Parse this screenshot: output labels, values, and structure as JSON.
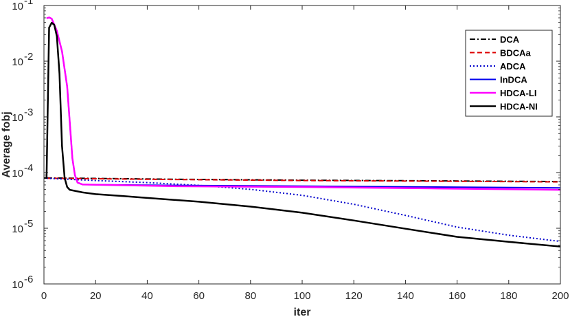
{
  "chart_data": {
    "type": "line",
    "xlabel": "iter",
    "ylabel": "Average fobj",
    "xlim": [
      0,
      200
    ],
    "ylim": [
      1e-06,
      0.1
    ],
    "yscale": "log",
    "grid": false,
    "legend_position": "top-right",
    "x_ticks": [
      0,
      20,
      40,
      60,
      80,
      100,
      120,
      140,
      160,
      180,
      200
    ],
    "y_ticks": [
      {
        "value": 1e-06,
        "base": "10",
        "exp": "-6"
      },
      {
        "value": 1e-05,
        "base": "10",
        "exp": "-5"
      },
      {
        "value": 0.0001,
        "base": "10",
        "exp": "-4"
      },
      {
        "value": 0.001,
        "base": "10",
        "exp": "-3"
      },
      {
        "value": 0.01,
        "base": "10",
        "exp": "-2"
      },
      {
        "value": 0.1,
        "base": "10",
        "exp": "-1"
      }
    ],
    "series": [
      {
        "name": "DCA",
        "color": "#000000",
        "dash": "dashdot",
        "width": 2,
        "points": [
          [
            1,
            8e-05
          ],
          [
            50,
            7.6e-05
          ],
          [
            100,
            7.3e-05
          ],
          [
            150,
            7.1e-05
          ],
          [
            200,
            6.9e-05
          ]
        ]
      },
      {
        "name": "BDCAa",
        "color": "#dd0000",
        "dash": "dashed",
        "width": 2,
        "points": [
          [
            1,
            7.9e-05
          ],
          [
            50,
            7.5e-05
          ],
          [
            100,
            7.2e-05
          ],
          [
            150,
            7e-05
          ],
          [
            200,
            6.8e-05
          ]
        ]
      },
      {
        "name": "ADCA",
        "color": "#0000cc",
        "dash": "dotted",
        "width": 2,
        "points": [
          [
            1,
            7.9e-05
          ],
          [
            20,
            7.2e-05
          ],
          [
            40,
            6.6e-05
          ],
          [
            60,
            5.9e-05
          ],
          [
            80,
            5e-05
          ],
          [
            100,
            3.9e-05
          ],
          [
            120,
            2.7e-05
          ],
          [
            140,
            1.7e-05
          ],
          [
            160,
            1.05e-05
          ],
          [
            180,
            7.5e-06
          ],
          [
            200,
            5.8e-06
          ]
        ]
      },
      {
        "name": "InDCA",
        "color": "#0000ee",
        "dash": "solid",
        "width": 2,
        "points": [
          [
            1,
            0.059
          ],
          [
            2,
            0.061
          ],
          [
            3,
            0.058
          ],
          [
            5,
            0.035
          ],
          [
            7,
            0.015
          ],
          [
            9,
            0.0035
          ],
          [
            10,
            0.0008
          ],
          [
            11,
            0.00018
          ],
          [
            12,
            9e-05
          ],
          [
            13,
            6.6e-05
          ],
          [
            15,
            6.1e-05
          ],
          [
            50,
            5.9e-05
          ],
          [
            100,
            5.7e-05
          ],
          [
            150,
            5.5e-05
          ],
          [
            200,
            5.3e-05
          ]
        ]
      },
      {
        "name": "HDCA-LI",
        "color": "#ff00ff",
        "dash": "solid",
        "width": 2.5,
        "points": [
          [
            1,
            0.059
          ],
          [
            2,
            0.061
          ],
          [
            3,
            0.058
          ],
          [
            5,
            0.035
          ],
          [
            7,
            0.015
          ],
          [
            9,
            0.0035
          ],
          [
            10,
            0.0008
          ],
          [
            11,
            0.00018
          ],
          [
            12,
            9e-05
          ],
          [
            13,
            6.6e-05
          ],
          [
            15,
            6.1e-05
          ],
          [
            50,
            5.7e-05
          ],
          [
            100,
            5.5e-05
          ],
          [
            150,
            5.2e-05
          ],
          [
            200,
            4.9e-05
          ]
        ]
      },
      {
        "name": "HDCA-NI",
        "color": "#000000",
        "dash": "solid",
        "width": 2.5,
        "points": [
          [
            0,
            8e-05
          ],
          [
            1,
            8e-05
          ],
          [
            2,
            0.04
          ],
          [
            3,
            0.049
          ],
          [
            4,
            0.045
          ],
          [
            5,
            0.028
          ],
          [
            6,
            0.006
          ],
          [
            7,
            0.0003
          ],
          [
            8,
            8e-05
          ],
          [
            9,
            5.5e-05
          ],
          [
            10,
            4.9e-05
          ],
          [
            15,
            4.4e-05
          ],
          [
            20,
            4.1e-05
          ],
          [
            30,
            3.8e-05
          ],
          [
            40,
            3.5e-05
          ],
          [
            60,
            3e-05
          ],
          [
            80,
            2.45e-05
          ],
          [
            100,
            1.9e-05
          ],
          [
            120,
            1.38e-05
          ],
          [
            140,
            9.8e-06
          ],
          [
            160,
            7e-06
          ],
          [
            180,
            5.7e-06
          ],
          [
            200,
            4.7e-06
          ]
        ]
      }
    ]
  }
}
